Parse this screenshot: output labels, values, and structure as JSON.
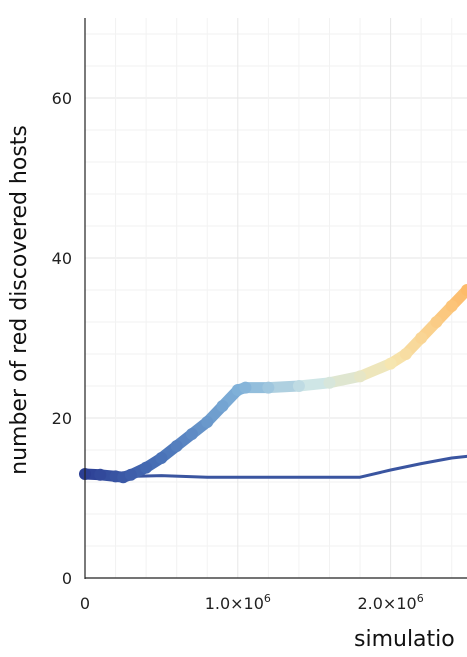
{
  "chart_data": {
    "type": "line",
    "title": "",
    "xlabel": "simulatio",
    "ylabel": "number of red discovered hosts",
    "xlim": [
      0,
      2500000
    ],
    "ylim": [
      0,
      70
    ],
    "grid": true,
    "x_ticks": [
      {
        "value": 0,
        "label": "0"
      },
      {
        "value": 1000000,
        "label": "1.0×10^6"
      },
      {
        "value": 2000000,
        "label": "2.0×10^6"
      }
    ],
    "y_ticks": [
      {
        "value": 0,
        "label": "0"
      },
      {
        "value": 20,
        "label": "20"
      },
      {
        "value": 40,
        "label": "40"
      },
      {
        "value": 60,
        "label": "60"
      }
    ],
    "series": [
      {
        "style": "thin",
        "color": "#3a55a0",
        "x": [
          0,
          100000,
          200000,
          300000,
          500000,
          800000,
          1200000,
          1500000,
          1800000,
          2000000,
          2200000,
          2400000,
          2500000
        ],
        "y": [
          12.6,
          12.8,
          12.5,
          12.7,
          12.8,
          12.6,
          12.6,
          12.6,
          12.6,
          13.5,
          14.3,
          15.0,
          15.2
        ]
      },
      {
        "style": "gradient-thick",
        "x": [
          0,
          100000,
          200000,
          250000,
          300000,
          400000,
          500000,
          600000,
          700000,
          800000,
          900000,
          1000000,
          1050000,
          1200000,
          1400000,
          1600000,
          1800000,
          2000000,
          2100000,
          2200000,
          2300000,
          2400000,
          2500000
        ],
        "y": [
          13.0,
          12.9,
          12.7,
          12.6,
          12.9,
          13.8,
          15.0,
          16.5,
          18.0,
          19.5,
          21.5,
          23.5,
          23.8,
          23.8,
          24.0,
          24.4,
          25.2,
          26.8,
          28.0,
          30.0,
          32.0,
          34.0,
          36.0
        ]
      }
    ],
    "colors": {
      "gradient": [
        "#2c3f94",
        "#4a73b8",
        "#7fb0d8",
        "#cfe6e6",
        "#f6e6b0",
        "#fdbb6a"
      ]
    }
  }
}
